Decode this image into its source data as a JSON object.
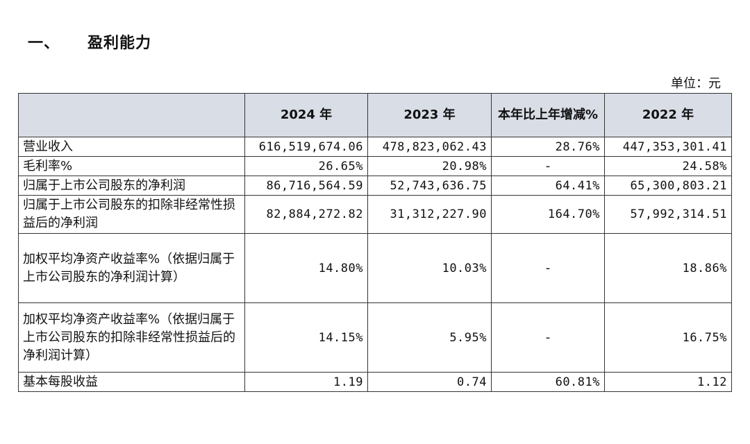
{
  "section": {
    "number": "一、",
    "title": "盈利能力"
  },
  "unit_note": "单位：元",
  "table": {
    "headers": [
      "",
      "2024 年",
      "2023 年",
      "本年比上年增减%",
      "2022 年"
    ],
    "rows": [
      {
        "label": "营业收入",
        "v2024": "616,519,674.06",
        "v2023": "478,823,062.43",
        "change": "28.76%",
        "v2022": "447,353,301.41"
      },
      {
        "label": "毛利率%",
        "v2024": "26.65%",
        "v2023": "20.98%",
        "change": "-",
        "v2022": "24.58%"
      },
      {
        "label": "归属于上市公司股东的净利润",
        "v2024": "86,716,564.59",
        "v2023": "52,743,636.75",
        "change": "64.41%",
        "v2022": "65,300,803.21"
      },
      {
        "label": "归属于上市公司股东的扣除非经常性损益后的净利润",
        "v2024": "82,884,272.82",
        "v2023": "31,312,227.90",
        "change": "164.70%",
        "v2022": "57,992,314.51"
      },
      {
        "label": "加权平均净资产收益率%（依据归属于上市公司股东的净利润计算）",
        "v2024": "14.80%",
        "v2023": "10.03%",
        "change": "-",
        "v2022": "18.86%"
      },
      {
        "label": "加权平均净资产收益率%（依据归属于上市公司股东的扣除非经常性损益后的净利润计算）",
        "v2024": "14.15%",
        "v2023": "5.95%",
        "change": "-",
        "v2022": "16.75%"
      },
      {
        "label": "基本每股收益",
        "v2024": "1.19",
        "v2023": "0.74",
        "change": "60.81%",
        "v2022": "1.12"
      }
    ]
  }
}
